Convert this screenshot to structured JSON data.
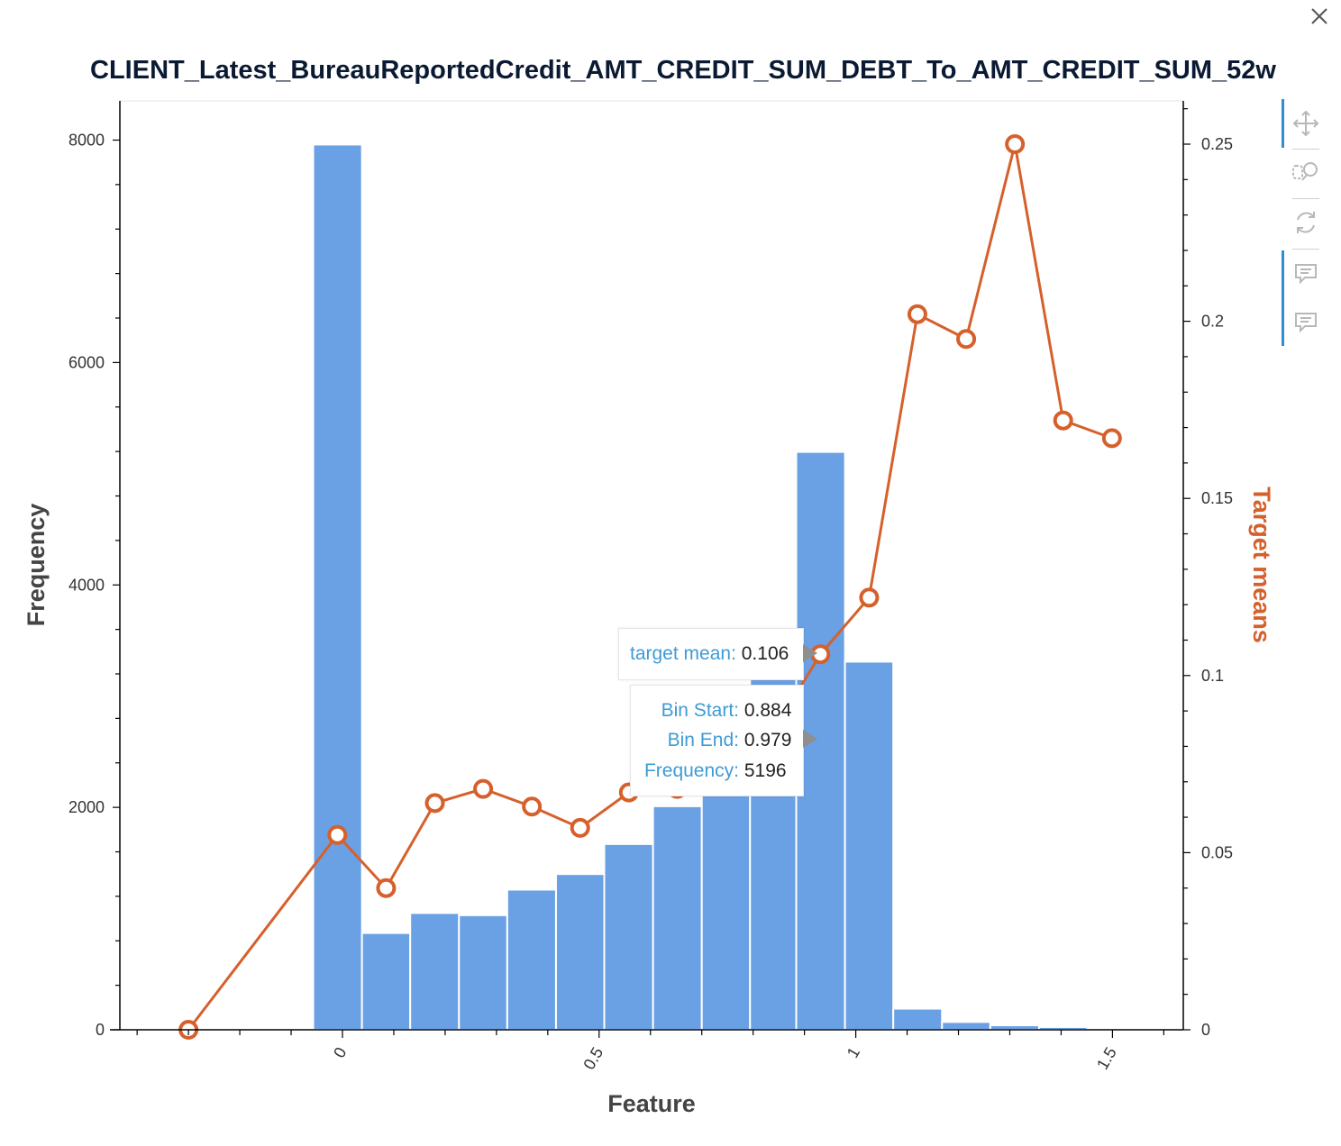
{
  "chart_data": {
    "type": "bar",
    "title": "CLIENT_Latest_BureauReportedCredit_AMT_CREDIT_SUM_DEBT_To_AMT_CREDIT_SUM_52w",
    "xlabel": "Feature",
    "ylabel": "Frequency",
    "y2label": "Target means",
    "xlim": [
      -0.395,
      1.63
    ],
    "ylim": [
      0,
      8050
    ],
    "y2lim": [
      0,
      0.262
    ],
    "x_ticks": [
      0,
      0.5,
      1,
      1.5
    ],
    "x_tick_labels": [
      "0",
      "0.5",
      "1",
      "1.5"
    ],
    "y_ticks": [
      0,
      2000,
      4000,
      6000,
      8000
    ],
    "y_tick_labels": [
      "0",
      "2000",
      "4000",
      "6000",
      "8000"
    ],
    "y2_ticks": [
      0,
      0.05,
      0.1,
      0.15,
      0.2,
      0.25
    ],
    "y2_tick_labels": [
      "0",
      "0.05",
      "0.1",
      "0.15",
      "0.2",
      "0.25"
    ],
    "bins": [
      {
        "start": -0.057,
        "end": 0.038,
        "frequency": 7960
      },
      {
        "start": 0.038,
        "end": 0.132,
        "frequency": 870
      },
      {
        "start": 0.132,
        "end": 0.227,
        "frequency": 1050
      },
      {
        "start": 0.227,
        "end": 0.321,
        "frequency": 1030
      },
      {
        "start": 0.321,
        "end": 0.416,
        "frequency": 1260
      },
      {
        "start": 0.416,
        "end": 0.51,
        "frequency": 1400
      },
      {
        "start": 0.51,
        "end": 0.605,
        "frequency": 1670
      },
      {
        "start": 0.605,
        "end": 0.7,
        "frequency": 2010
      },
      {
        "start": 0.7,
        "end": 0.794,
        "frequency": 2300
      },
      {
        "start": 0.794,
        "end": 0.884,
        "frequency": 3350
      },
      {
        "start": 0.884,
        "end": 0.979,
        "frequency": 5196
      },
      {
        "start": 0.979,
        "end": 1.073,
        "frequency": 3310
      },
      {
        "start": 1.073,
        "end": 1.168,
        "frequency": 190
      },
      {
        "start": 1.168,
        "end": 1.262,
        "frequency": 70
      },
      {
        "start": 1.262,
        "end": 1.357,
        "frequency": 40
      },
      {
        "start": 1.357,
        "end": 1.451,
        "frequency": 25
      },
      {
        "start": 1.451,
        "end": 1.546,
        "frequency": 15
      }
    ],
    "series": [
      {
        "name": "target mean",
        "x": [
          -0.3,
          -0.01,
          0.085,
          0.18,
          0.274,
          0.369,
          0.463,
          0.558,
          0.652,
          0.747,
          0.842,
          0.931,
          1.026,
          1.12,
          1.215,
          1.31,
          1.404,
          1.499
        ],
        "values": [
          0.0,
          0.055,
          0.04,
          0.064,
          0.068,
          0.063,
          0.057,
          0.067,
          0.068,
          0.077,
          0.085,
          0.106,
          0.122,
          0.202,
          0.195,
          0.25,
          0.172,
          0.167
        ]
      }
    ],
    "colors": {
      "bars": "#6aa0e4",
      "bar_edge": "#ffffff",
      "line": "#d6602c",
      "marker_fill": "#ffffff",
      "y2_label": "#d6602c",
      "axis": "#000000"
    },
    "legend": "none",
    "grid": false
  },
  "tooltips": {
    "line_tooltip": {
      "label": "target mean:",
      "value": "0.106"
    },
    "bar_tooltip": [
      {
        "label": "Bin Start:",
        "value": "0.884"
      },
      {
        "label": "Bin End:",
        "value": "0.979"
      },
      {
        "label": "Frequency:",
        "value": "5196"
      }
    ]
  },
  "toolbar": {
    "tools": [
      "pan-icon",
      "box-zoom-icon",
      "reset-icon",
      "hover-icon",
      "hover-icon"
    ]
  },
  "icons": {
    "close": "close-icon"
  }
}
